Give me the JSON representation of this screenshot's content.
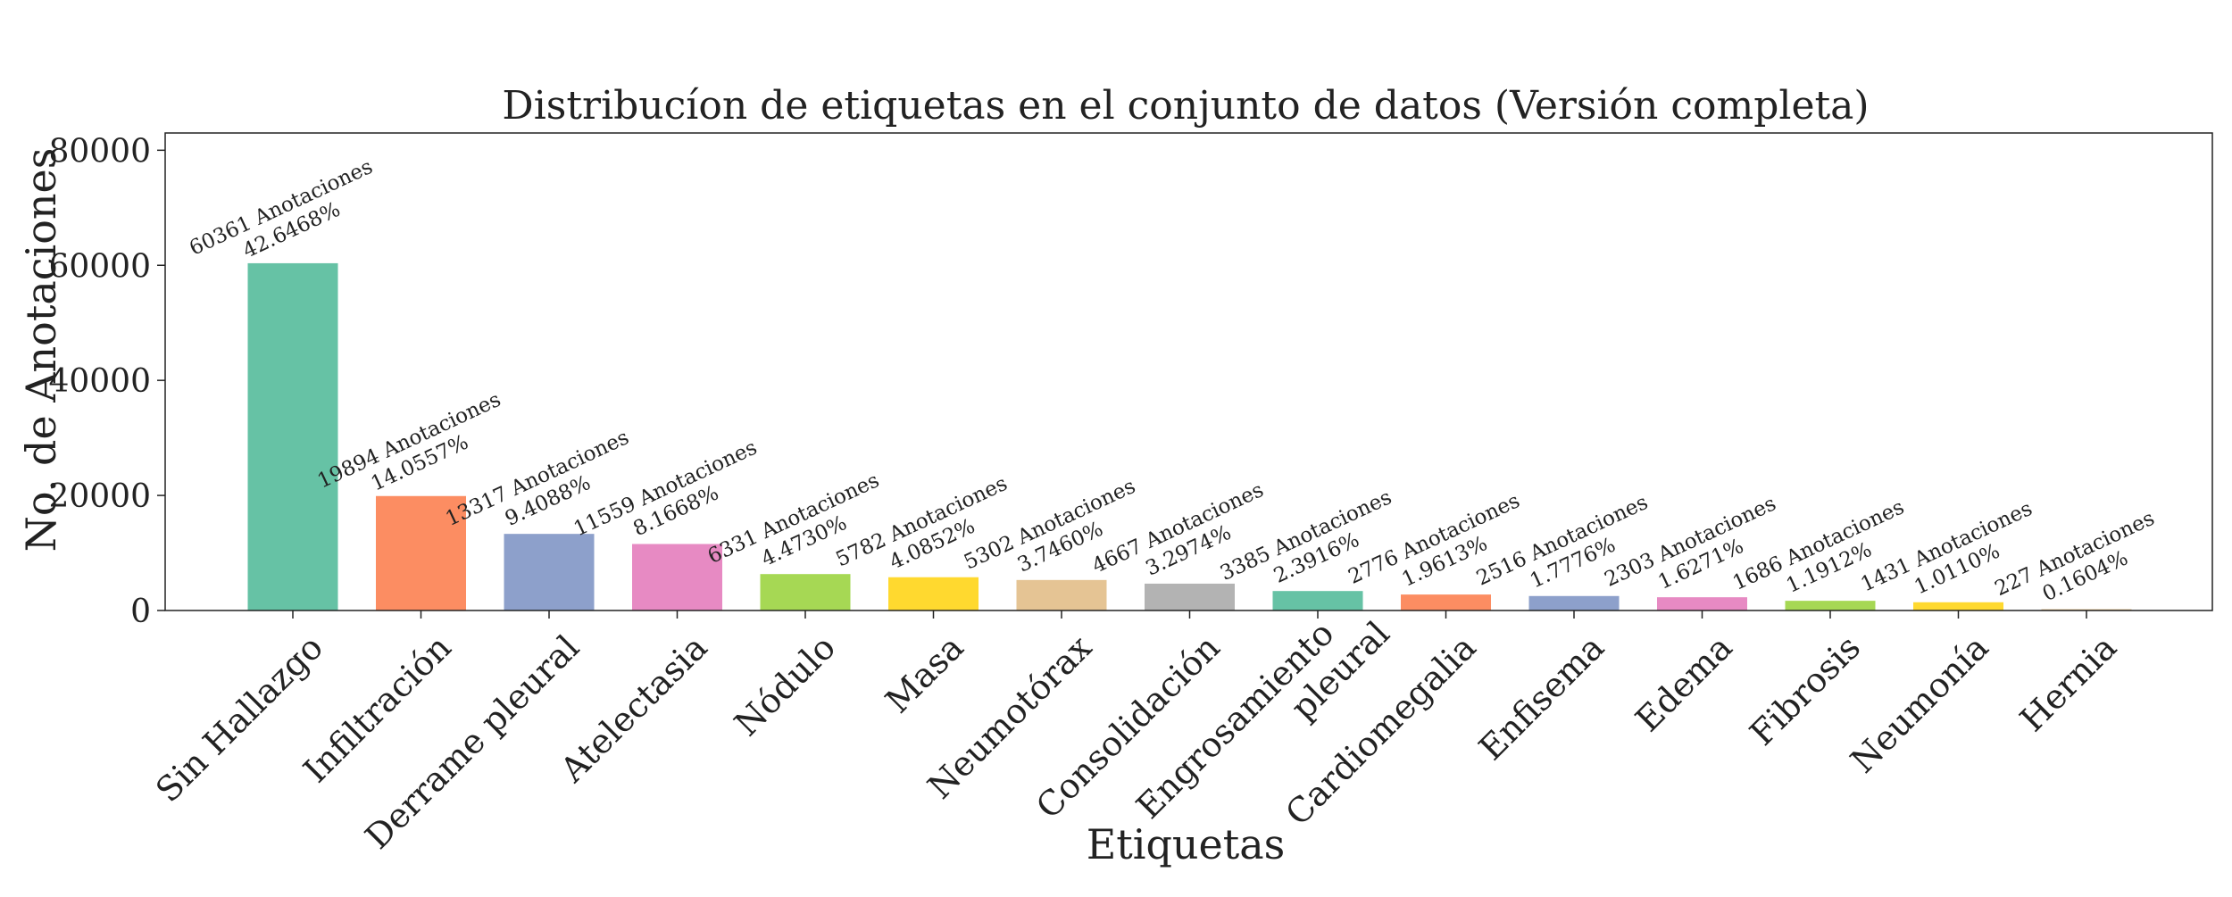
{
  "chart_data": {
    "type": "bar",
    "title": "Distribucíon de etiquetas en el conjunto de datos (Versión completa)",
    "xlabel": "Etiquetas",
    "ylabel": "No. de Anotaciones",
    "ylim": [
      0,
      83000
    ],
    "yticks": [
      0,
      20000,
      40000,
      60000,
      80000
    ],
    "grid": false,
    "categories": [
      "Sin Hallazgo",
      "Infiltración",
      "Derrame pleural",
      "Atelectasia",
      "Nódulo",
      "Masa",
      "Neumotórax",
      "Consolidación",
      "Engrosamiento\npleural",
      "Cardiomegalia",
      "Enfisema",
      "Edema",
      "Fibrosis",
      "Neumonía",
      "Hernia"
    ],
    "values": [
      60361,
      19894,
      13317,
      11559,
      6331,
      5782,
      5302,
      4667,
      3385,
      2776,
      2516,
      2303,
      1686,
      1431,
      227
    ],
    "percentages": [
      "42.6468%",
      "14.0557%",
      "9.4088%",
      "8.1668%",
      "4.4730%",
      "4.0852%",
      "3.7460%",
      "3.2974%",
      "2.3916%",
      "1.9613%",
      "1.7776%",
      "1.6271%",
      "1.1912%",
      "1.0110%",
      "0.1604%"
    ],
    "data_labels": [
      "60361 Anotaciones",
      "19894 Anotaciones",
      "13317 Anotaciones",
      "11559 Anotaciones",
      "6331 Anotaciones",
      "5782 Anotaciones",
      "5302 Anotaciones",
      "4667 Anotaciones",
      "3385 Anotaciones",
      "2776 Anotaciones",
      "2516 Anotaciones",
      "2303 Anotaciones",
      "1686 Anotaciones",
      "1431 Anotaciones",
      "227 Anotaciones"
    ],
    "colors": [
      "#66c2a5",
      "#fc8d62",
      "#8da0cb",
      "#e78ac3",
      "#a6d854",
      "#ffd92f",
      "#e5c494",
      "#b3b3b3",
      "#66c2a5",
      "#fc8d62",
      "#8da0cb",
      "#e78ac3",
      "#a6d854",
      "#ffd92f",
      "#e5c494"
    ]
  }
}
